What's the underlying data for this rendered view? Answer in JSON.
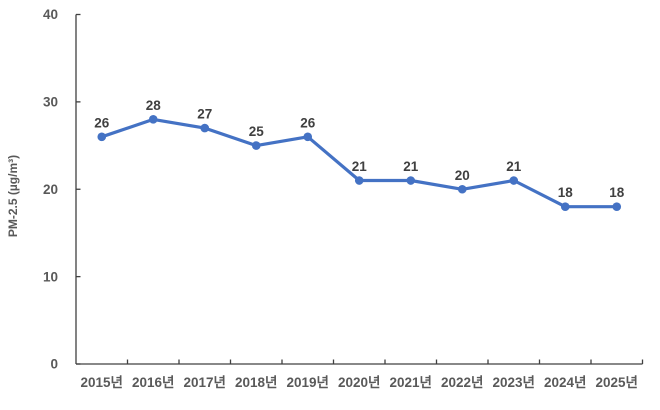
{
  "chart_data": {
    "type": "line",
    "title": "",
    "xlabel": "",
    "ylabel": "PM-2.5 (µg/m³)",
    "categories": [
      "2015년",
      "2016년",
      "2017년",
      "2018년",
      "2019년",
      "2020년",
      "2021년",
      "2022년",
      "2023년",
      "2024년",
      "2025년"
    ],
    "values": [
      26,
      28,
      27,
      25,
      26,
      21,
      21,
      20,
      21,
      18,
      18
    ],
    "ylim": [
      0,
      40
    ],
    "yticks": [
      0,
      10,
      20,
      30,
      40
    ],
    "grid": false,
    "legend": "none",
    "marker_shape": "circle",
    "data_labels_position": "above",
    "colors": {
      "line": "#4472C4",
      "marker": "#4472C4",
      "data_label": "#404040",
      "tick_label": "#595959",
      "axis": "#404040"
    }
  }
}
